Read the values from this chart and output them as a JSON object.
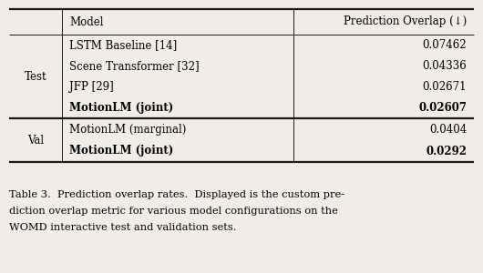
{
  "caption_line1": "Table 3.  Prediction overlap rates.  Displayed is the custom pre-",
  "caption_line2": "diction overlap metric for various model configurations on the",
  "caption_line3": "WOMD interactive test and validation sets.",
  "col_headers": [
    "Model",
    "Prediction Overlap (↓)"
  ],
  "section_test": "Test",
  "section_val": "Val",
  "test_rows": [
    [
      "LSTM Baseline [14]",
      "0.07462",
      false
    ],
    [
      "Scene Transformer [32]",
      "0.04336",
      false
    ],
    [
      "JFP [29]",
      "0.02671",
      false
    ],
    [
      "MotionLM (joint)",
      "0.02607",
      true
    ]
  ],
  "val_rows": [
    [
      "MotionLM (marginal)",
      "0.0404",
      false
    ],
    [
      "MotionLM (joint)",
      "0.0292",
      true
    ]
  ],
  "bg_color": "#f0ede8",
  "line_color": "#1a1a1a",
  "font_size": 8.5,
  "caption_font_size": 8.2,
  "thick_lw": 1.6,
  "thin_lw": 0.7
}
